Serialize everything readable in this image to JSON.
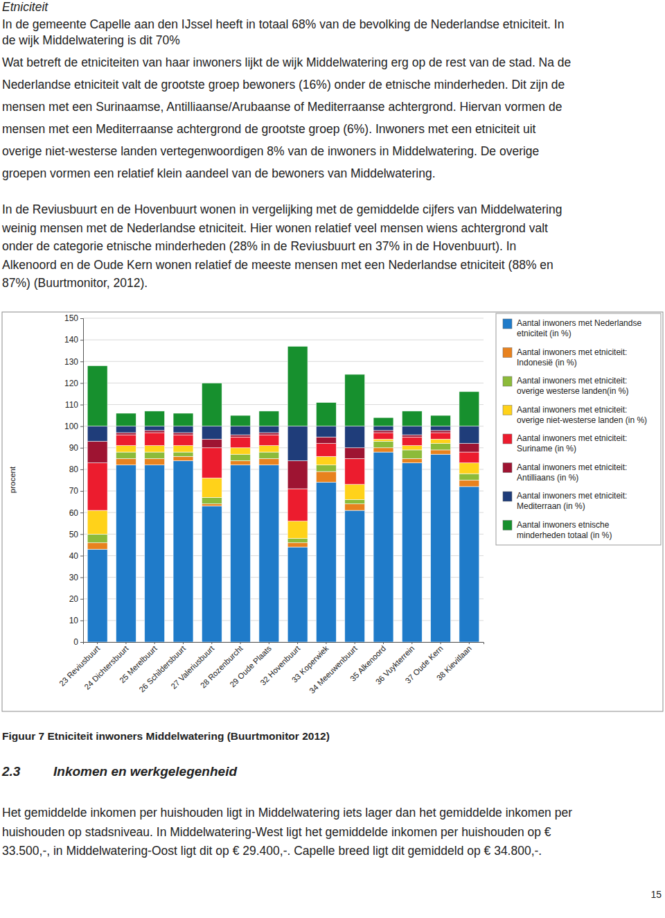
{
  "heading": "Etniciteit",
  "paragraphs_top": [
    [
      "In de gemeente Capelle aan den IJssel heeft in totaal 68% van de bevolking de Nederlandse etniciteit. In",
      "de wijk Middelwatering is dit 70%"
    ],
    [
      "Wat betreft de etniciteiten van haar inwoners lijkt de wijk Middelwatering erg op de rest van de stad. Na de",
      "Nederlandse etniciteit valt de grootste groep bewoners (16%) onder de etnische minderheden. Dit zijn de",
      "mensen met een Surinaamse, Antilliaanse/Arubaanse of Mediterraanse achtergrond. Hiervan vormen de",
      "mensen met een Mediterraanse achtergrond de grootste groep (6%). Inwoners met een etniciteit uit",
      "overige niet-westerse landen vertegenwoordigen 8% van de inwoners in Middelwatering. De overige",
      "groepen vormen een relatief klein aandeel van de bewoners van Middelwatering."
    ],
    [
      "In de Reviusbuurt en de Hovenbuurt wonen in vergelijking met de gemiddelde cijfers van Middelwatering",
      "weinig mensen met de Nederlandse etniciteit. Hier wonen relatief veel mensen wiens achtergrond valt",
      "onder de categorie etnische minderheden (28% in de Reviusbuurt en 37% in de Hovenbuurt). In",
      "Alkenoord en de Oude Kern wonen relatief de meeste mensen met een Nederlandse etniciteit (88% en",
      "87%) (Buurtmonitor, 2012)."
    ]
  ],
  "chart_data": {
    "type": "bar",
    "stacked": true,
    "grid": true,
    "legend": "right",
    "y_label": "procent",
    "categories": [
      "23 Reviusbuurt",
      "24 Dichtersbuurt",
      "25 Merelbuurt",
      "26 Schildersbuurt",
      "27 Valeriusbuurt",
      "28 Rozenburcht",
      "29 Oude Plaats",
      "32 Hovenbuurt",
      "33 Koperwiek",
      "34 Meeuwenbuurt",
      "35 Alkenoord",
      "36 Vuykterrein",
      "37 Oude Kern",
      "38 Kievitlaan"
    ],
    "ylim": [
      0,
      150
    ],
    "yticks": [
      0,
      10,
      20,
      30,
      40,
      50,
      60,
      70,
      80,
      90,
      100,
      110,
      120,
      130,
      140,
      150
    ],
    "series": [
      {
        "name": "Aantal inwoners met Nederlandse etniciteit (in %)",
        "color": "#1f7bc9",
        "values": [
          43,
          82,
          82,
          84,
          63,
          82,
          82,
          44,
          74,
          61,
          88,
          83,
          87,
          72
        ]
      },
      {
        "name": "Aantal inwoners met etniciteit: Indonesië (in %)",
        "color": "#e8821e",
        "values": [
          3,
          3,
          3,
          2,
          1,
          2,
          3,
          2,
          5,
          3,
          2,
          2,
          2,
          3
        ]
      },
      {
        "name": "Aantal inwoners met etniciteit: overige westerse landen(in %)",
        "color": "#8cbb3a",
        "values": [
          4,
          3,
          3,
          2,
          3,
          3,
          3,
          2,
          3,
          2,
          3,
          4,
          3,
          3
        ]
      },
      {
        "name": "Aantal inwoners met etniciteit: overige niet-westerse landen (in %)",
        "color": "#ffd21a",
        "values": [
          11,
          3,
          3,
          3,
          9,
          3,
          3,
          8,
          4,
          7,
          1,
          2,
          2,
          5
        ]
      },
      {
        "name": "Aantal inwoners met etniciteit: Suriname (in %)",
        "color": "#ec1c2e",
        "values": [
          22,
          5,
          6,
          5,
          14,
          5,
          5,
          15,
          6,
          12,
          3,
          4,
          3,
          5
        ]
      },
      {
        "name": "Aantal inwoners met etniciteit: Antilliaans (in %)",
        "color": "#9e1432",
        "values": [
          10,
          1,
          1,
          1,
          4,
          1,
          1,
          13,
          3,
          5,
          1,
          1,
          1,
          4
        ]
      },
      {
        "name": "Aantal inwoners met etniciteit: Mediterraan (in %)",
        "color": "#1f3d7a",
        "values": [
          7,
          3,
          2,
          3,
          6,
          4,
          3,
          16,
          5,
          10,
          2,
          4,
          2,
          8
        ]
      },
      {
        "name": "Aantal inwoners etnische minderheden totaal (in %)",
        "color": "#17902e",
        "values": [
          28,
          6,
          7,
          6,
          20,
          5,
          7,
          37,
          11,
          24,
          4,
          7,
          5,
          16
        ]
      }
    ]
  },
  "caption": "Figuur 7 Etniciteit inwoners Middelwatering (Buurtmonitor 2012)",
  "section": {
    "number": "2.3",
    "title": "Inkomen en werkgelegenheid"
  },
  "paragraphs_bottom": [
    [
      "Het gemiddelde inkomen per huishouden ligt in Middelwatering iets lager dan het gemiddelde inkomen per",
      "huishouden op stadsniveau. In Middelwatering-West ligt het gemiddelde inkomen per huishouden op €",
      "33.500,-, in Middelwatering-Oost ligt dit op € 29.400,-. Capelle breed ligt dit gemiddeld op € 34.800,-."
    ]
  ],
  "page_number": 15
}
